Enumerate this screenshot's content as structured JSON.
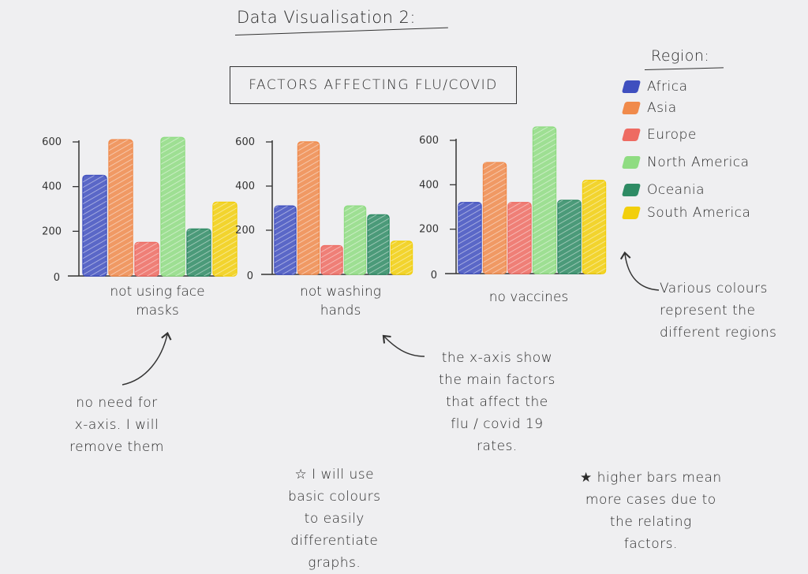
{
  "page": {
    "title": "Data Visualisation 2:",
    "chart_title": "FACTORS AFFECTING FLU/COVID"
  },
  "legend": {
    "title": "Region:",
    "items": [
      {
        "label": "Africa",
        "color": "#3f4fbf"
      },
      {
        "label": "Asia",
        "color": "#f08a4b"
      },
      {
        "label": "Europe",
        "color": "#ee6b62"
      },
      {
        "label": "North America",
        "color": "#8fdc82"
      },
      {
        "label": "Oceania",
        "color": "#2e8b64"
      },
      {
        "label": "South America",
        "color": "#f2cf0c"
      }
    ]
  },
  "chart_data": [
    {
      "type": "bar",
      "xlabel": "not using face masks",
      "yticks": [
        "0",
        "200",
        "400",
        "600"
      ],
      "ylim": [
        0,
        600
      ],
      "categories": [
        "Africa",
        "Asia",
        "Europe",
        "North America",
        "Oceania",
        "South America"
      ],
      "values": [
        450,
        610,
        150,
        620,
        210,
        330
      ]
    },
    {
      "type": "bar",
      "xlabel": "not washing hands",
      "yticks": [
        "0",
        "200",
        "400",
        "600"
      ],
      "ylim": [
        0,
        600
      ],
      "categories": [
        "Africa",
        "Asia",
        "Europe",
        "North America",
        "Oceania",
        "South America"
      ],
      "values": [
        310,
        600,
        130,
        310,
        270,
        150
      ]
    },
    {
      "type": "bar",
      "xlabel": "no vaccines",
      "yticks": [
        "0",
        "200",
        "400",
        "600"
      ],
      "ylim": [
        0,
        600
      ],
      "categories": [
        "Africa",
        "Asia",
        "Europe",
        "North America",
        "Oceania",
        "South America"
      ],
      "values": [
        320,
        500,
        320,
        660,
        330,
        420
      ]
    }
  ],
  "notes": {
    "legend_note": [
      "Various colours",
      "represent the",
      "different regions"
    ],
    "xaxis_note": [
      "no need for",
      "x-axis. I will",
      "remove them"
    ],
    "factors_note": [
      "the x-axis show",
      "the main factors",
      "that affect the",
      "flu / covid 19",
      "rates."
    ],
    "colours_note": [
      "☆ I will use",
      "basic colours",
      "to easily",
      "differentiate",
      "graphs."
    ],
    "bars_note": [
      "★ higher bars mean",
      "more cases due to",
      "the relating",
      "factors."
    ]
  }
}
